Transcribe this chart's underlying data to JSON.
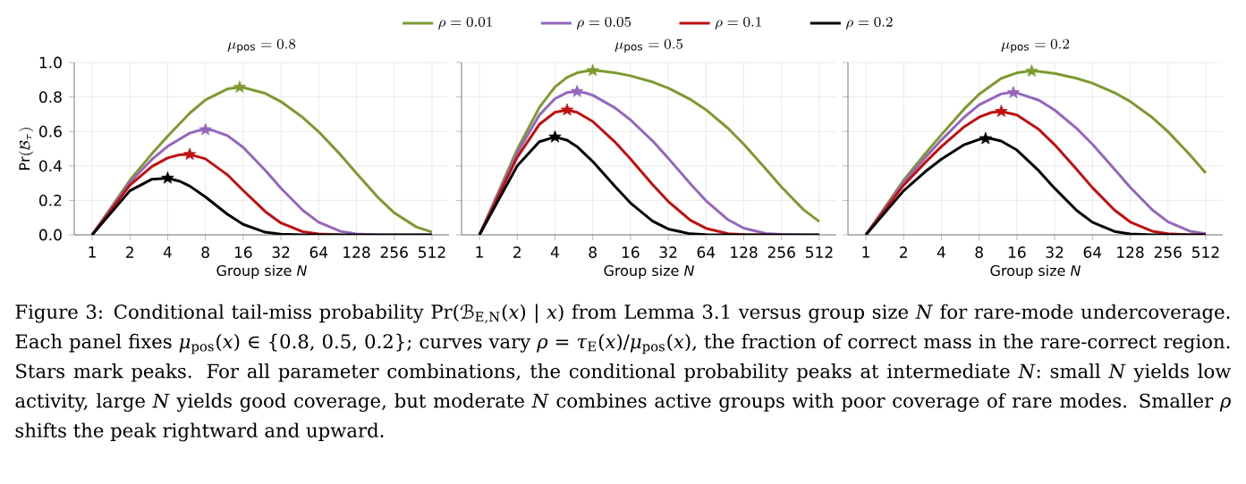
{
  "chart_data": [
    {
      "type": "line",
      "title": "\\mu_{\\mathrm{pos}} = 0.8",
      "xlabel": "Group size *N*",
      "ylabel": "\\mathrm{Pr}(\\mathcal{B}_{\\tau})",
      "log": "x",
      "grid": true,
      "xlim": [
        0.72,
        700
      ],
      "ylim": [
        0,
        1.0
      ],
      "xticks": [
        1,
        2,
        4,
        8,
        16,
        32,
        64,
        128,
        256,
        512
      ],
      "yticks": [
        {
          "value": 0,
          "label": "0.0"
        },
        {
          "value": 0.2,
          "label": "0.2"
        },
        {
          "value": 0.4,
          "label": "0.4"
        },
        {
          "value": 0.6,
          "label": "0.6"
        },
        {
          "value": 0.8,
          "label": "0.8"
        },
        {
          "value": 1.0,
          "label": "1.0"
        }
      ],
      "annotations": [
        "Figure 3: Conditional tail-miss probability Pr(ℬ$_{E,N}$(*x*) | *x*) from Lemma 3.1 versus group size *N* for rare-mode undercoverage. Each panel fixes *μ*$_{pos}$(*x*) ∈ {0.8, 0.5, 0.2}; curves vary *ρ* = *τ*$_{E}$(*x*)/*μ*$_{pos}$(*x*), the fraction of correct mass in the rare-correct region. Stars mark peaks. For all parameter combinations, the conditional probability peaks at intermediate *N*: small *N* yields low activity, large *N* yields good coverage, but moderate *N* combines active groups with poor coverage of rare modes. Smaller *ρ* shifts the peak rightward and upward."
      ],
      "series": [
        {
          "color": "#7d9a31",
          "x": [
            1,
            2,
            3,
            4,
            6,
            8,
            12,
            15,
            16,
            24,
            32,
            48,
            64,
            96,
            128,
            192,
            256,
            384,
            512
          ],
          "values": [
            0,
            0.317,
            0.471,
            0.573,
            0.706,
            0.783,
            0.847,
            0.856,
            0.855,
            0.821,
            0.773,
            0.68,
            0.598,
            0.463,
            0.358,
            0.214,
            0.128,
            0.046,
            0.016
          ]
        },
        {
          "color": "#9467bd",
          "x": [
            1,
            2,
            3,
            4,
            6,
            7,
            8,
            9,
            12,
            16,
            24,
            32,
            48,
            64,
            96,
            128,
            192,
            256,
            384,
            512
          ],
          "values": [
            0,
            0.304,
            0.438,
            0.514,
            0.59,
            0.605,
            0.61,
            0.608,
            0.576,
            0.508,
            0.374,
            0.271,
            0.141,
            0.073,
            0.02,
            0.005,
            0,
            0,
            0,
            0
          ]
        },
        {
          "color": "#c01010",
          "x": [
            1,
            2,
            3,
            4,
            5,
            6,
            8,
            12,
            16,
            24,
            32,
            48,
            64,
            96
          ],
          "values": [
            0,
            0.288,
            0.397,
            0.446,
            0.465,
            0.467,
            0.441,
            0.348,
            0.258,
            0.135,
            0.069,
            0.018,
            0.005,
            0
          ]
        },
        {
          "color": "#000000",
          "x": [
            1,
            2,
            3,
            4,
            5,
            6,
            8,
            12,
            16,
            24,
            32,
            48,
            64,
            96,
            128,
            192,
            256,
            384,
            512
          ],
          "values": [
            0,
            0.256,
            0.323,
            0.329,
            0.311,
            0.283,
            0.22,
            0.119,
            0.061,
            0.015,
            0.004,
            0,
            0,
            0,
            0,
            0,
            0,
            0,
            0
          ]
        },
        {
          "type": "scatter",
          "marker": "star",
          "color": "#7d9a31",
          "x": [
            15
          ],
          "values": [
            0.856
          ]
        },
        {
          "type": "scatter",
          "marker": "star",
          "color": "#9467bd",
          "x": [
            8
          ],
          "values": [
            0.61
          ]
        },
        {
          "type": "scatter",
          "marker": "star",
          "color": "#c01010",
          "x": [
            6
          ],
          "values": [
            0.467
          ]
        },
        {
          "type": "scatter",
          "marker": "star",
          "color": "#000000",
          "x": [
            4
          ],
          "values": [
            0.329
          ]
        }
      ]
    },
    {
      "type": "line",
      "title": "\\mu_{\\mathrm{pos}} = 0.5",
      "xlabel": "Group size *N*",
      "log": "x",
      "grid": true,
      "legend": "top",
      "tick_labels": "x",
      "xlim": [
        0.72,
        700
      ],
      "ylim": [
        0,
        1.0
      ],
      "xticks": [
        1,
        2,
        4,
        8,
        16,
        32,
        64,
        128,
        256,
        512
      ],
      "yticks": [
        {
          "value": 0,
          "label": null
        },
        {
          "value": 0.2,
          "label": null
        },
        {
          "value": 0.4,
          "label": null
        },
        {
          "value": 0.6,
          "label": null
        },
        {
          "value": 0.8,
          "label": null
        },
        {
          "value": 1.0,
          "label": null
        }
      ],
      "series": [
        {
          "name": "\\rho = 0.01",
          "color": "#7d9a31",
          "x": [
            1,
            2,
            3,
            4,
            5,
            6,
            7,
            8,
            9,
            12,
            16,
            24,
            32,
            48,
            64,
            96,
            128,
            192,
            256,
            384,
            512
          ],
          "values": [
            0,
            0.495,
            0.739,
            0.858,
            0.914,
            0.94,
            0.95,
            0.953,
            0.952,
            0.941,
            0.923,
            0.887,
            0.852,
            0.786,
            0.726,
            0.618,
            0.526,
            0.382,
            0.277,
            0.146,
            0.077
          ]
        },
        {
          "name": "\\rho = 0.05",
          "color": "#9467bd",
          "x": [
            1,
            2,
            3,
            4,
            5,
            6,
            7,
            8,
            12,
            16,
            24,
            32,
            48,
            64,
            96,
            128,
            192,
            256,
            384,
            512
          ],
          "values": [
            0,
            0.475,
            0.695,
            0.79,
            0.826,
            0.832,
            0.824,
            0.81,
            0.738,
            0.667,
            0.545,
            0.445,
            0.297,
            0.198,
            0.088,
            0.039,
            0.008,
            0.002,
            0,
            0
          ]
        },
        {
          "name": "\\rho = 0.1",
          "color": "#c01010",
          "x": [
            1,
            2,
            3,
            4,
            5,
            6,
            8,
            12,
            16,
            24,
            32,
            48,
            64,
            96,
            128,
            192
          ],
          "values": [
            0,
            0.45,
            0.641,
            0.711,
            0.724,
            0.711,
            0.658,
            0.54,
            0.44,
            0.292,
            0.194,
            0.085,
            0.038,
            0.007,
            0.001,
            0
          ]
        },
        {
          "name": "\\rho = 0.2",
          "color": "#000000",
          "x": [
            1,
            2,
            3,
            4,
            5,
            6,
            8,
            12,
            16,
            24,
            32,
            48,
            64,
            96,
            128,
            192,
            256,
            384,
            512
          ],
          "values": [
            0,
            0.4,
            0.54,
            0.568,
            0.549,
            0.512,
            0.426,
            0.282,
            0.185,
            0.08,
            0.034,
            0.006,
            0.001,
            0,
            0,
            0,
            0,
            0,
            0
          ]
        },
        {
          "type": "scatter",
          "marker": "star",
          "color": "#7d9a31",
          "x": [
            8
          ],
          "values": [
            0.953
          ]
        },
        {
          "type": "scatter",
          "marker": "star",
          "color": "#9467bd",
          "x": [
            6
          ],
          "values": [
            0.832
          ]
        },
        {
          "type": "scatter",
          "marker": "star",
          "color": "#c01010",
          "x": [
            5
          ],
          "values": [
            0.724
          ]
        },
        {
          "type": "scatter",
          "marker": "star",
          "color": "#000000",
          "x": [
            4
          ],
          "values": [
            0.568
          ]
        }
      ]
    },
    {
      "type": "line",
      "title": "\\mu_{\\mathrm{pos}} = 0.2",
      "xlabel": "Group size *N*",
      "log": "x",
      "grid": true,
      "tick_labels": "x",
      "xlim": [
        0.72,
        700
      ],
      "ylim": [
        0,
        1.0
      ],
      "xticks": [
        1,
        2,
        4,
        8,
        16,
        32,
        64,
        128,
        256,
        512
      ],
      "yticks": [
        {
          "value": 0,
          "label": null
        },
        {
          "value": 0.2,
          "label": null
        },
        {
          "value": 0.4,
          "label": null
        },
        {
          "value": 0.6,
          "label": null
        },
        {
          "value": 0.8,
          "label": null
        },
        {
          "value": 1.0,
          "label": null
        }
      ],
      "series": [
        {
          "color": "#7d9a31",
          "x": [
            1,
            2,
            3,
            4,
            6,
            8,
            12,
            16,
            20,
            21,
            24,
            32,
            48,
            64,
            96,
            128,
            192,
            256,
            384,
            512
          ],
          "values": [
            0,
            0.317,
            0.474,
            0.581,
            0.726,
            0.816,
            0.908,
            0.94,
            0.949,
            0.95,
            0.948,
            0.937,
            0.908,
            0.88,
            0.825,
            0.774,
            0.681,
            0.599,
            0.464,
            0.359
          ]
        },
        {
          "color": "#9467bd",
          "x": [
            1,
            2,
            3,
            4,
            6,
            8,
            12,
            14,
            15,
            16,
            24,
            32,
            48,
            64,
            96,
            128,
            192,
            256,
            384,
            512
          ],
          "values": [
            0,
            0.304,
            0.451,
            0.55,
            0.679,
            0.755,
            0.818,
            0.825,
            0.825,
            0.823,
            0.781,
            0.724,
            0.617,
            0.526,
            0.381,
            0.276,
            0.145,
            0.076,
            0.021,
            0.006
          ]
        },
        {
          "color": "#c01010",
          "x": [
            1,
            2,
            3,
            4,
            6,
            8,
            10,
            12,
            16,
            24,
            32,
            48,
            64,
            96,
            128,
            192,
            256,
            384,
            512
          ],
          "values": [
            0,
            0.288,
            0.423,
            0.512,
            0.624,
            0.683,
            0.71,
            0.716,
            0.696,
            0.611,
            0.523,
            0.379,
            0.274,
            0.144,
            0.075,
            0.021,
            0.006,
            0,
            0
          ]
        },
        {
          "color": "#000000",
          "x": [
            1,
            2,
            3,
            4,
            6,
            8,
            9,
            10,
            12,
            16,
            24,
            32,
            48,
            64,
            96,
            128,
            192,
            256,
            384,
            512
          ],
          "values": [
            0,
            0.256,
            0.369,
            0.439,
            0.521,
            0.554,
            0.558,
            0.558,
            0.544,
            0.492,
            0.371,
            0.27,
            0.141,
            0.073,
            0.02,
            0.005,
            0,
            0,
            0,
            0
          ]
        },
        {
          "type": "scatter",
          "marker": "star",
          "color": "#7d9a31",
          "x": [
            21
          ],
          "values": [
            0.95
          ]
        },
        {
          "type": "scatter",
          "marker": "star",
          "color": "#9467bd",
          "x": [
            15
          ],
          "values": [
            0.825
          ]
        },
        {
          "type": "scatter",
          "marker": "star",
          "color": "#c01010",
          "x": [
            12
          ],
          "values": [
            0.716
          ]
        },
        {
          "type": "scatter",
          "marker": "star",
          "color": "#000000",
          "x": [
            9
          ],
          "values": [
            0.558
          ]
        }
      ]
    }
  ]
}
